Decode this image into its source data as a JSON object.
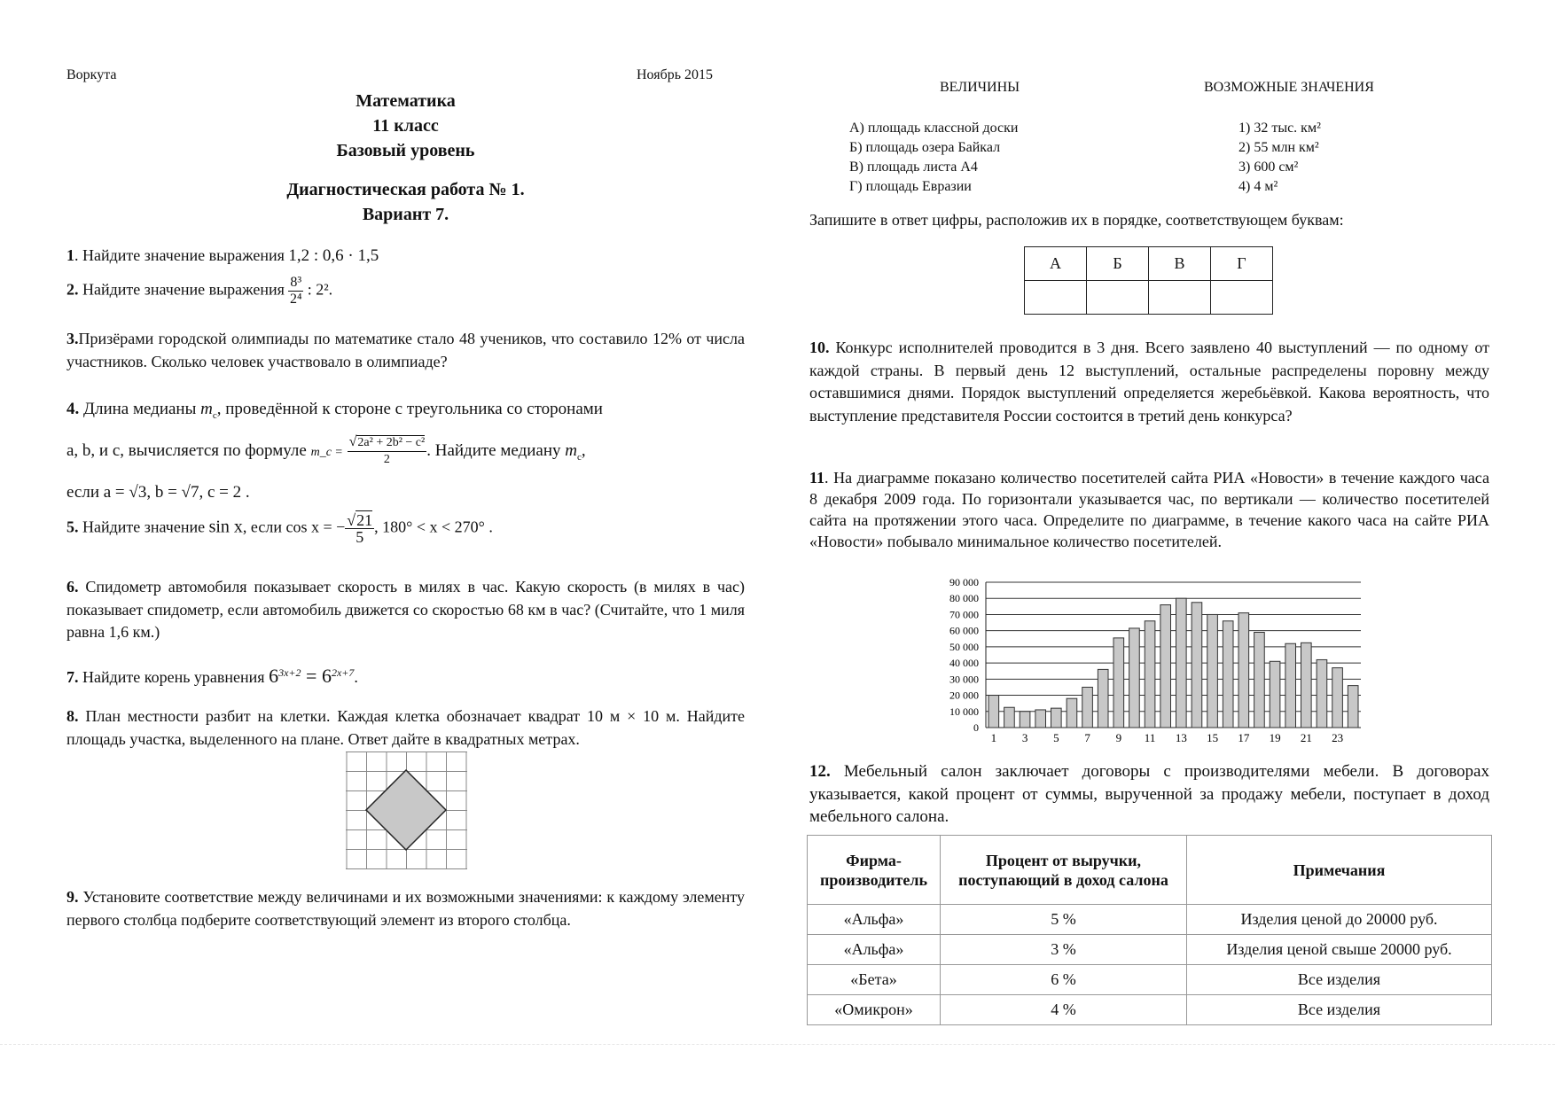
{
  "header": {
    "city": "Воркута",
    "date": "Ноябрь 2015",
    "subject": "Математика",
    "grade": "11 класс",
    "level": "Базовый уровень",
    "work": "Диагностическая работа № 1.",
    "variant": "Вариант 7."
  },
  "q1": {
    "num": "1",
    "text": ". Найдите значение выражения ",
    "expr": "1,2 : 0,6 · 1,5"
  },
  "q2": {
    "num": "2.",
    "text": " Найдите значение выражения ",
    "num_expr": "8³",
    "den_expr": "2⁴",
    "tail": " : 2²."
  },
  "q3": {
    "num": "3.",
    "text": "Призёрами городской олимпиады по математике стало 48 учеников, что составило 12% от числа участников. Сколько человек участвовало в олимпиаде?"
  },
  "q4": {
    "num": "4.",
    "line1a": " Длина медианы ",
    "mc": "m",
    "mc_sub": "c",
    "line1b": ", проведённой к стороне c треугольника со сторонами",
    "line2a": "a, b, и c, вычисляется по формуле ",
    "formula_lhs": "m_c =",
    "formula_num": "2a² + 2b² − c²",
    "formula_den": "2",
    "line2b": ". Найдите медиану ",
    "line3": "если  a = √3, b = √7, c = 2 ."
  },
  "q5": {
    "num": "5.",
    "text": " Найдите значение ",
    "sin": "sin x",
    "if": ", если ",
    "cos": "cos x = −",
    "rad": "21",
    "den": "5",
    "range": ",  180° < x < 270° ."
  },
  "q6": {
    "num": "6.",
    "text": " Спидометр автомобиля показывает скорость в милях в час. Какую скорость (в милях в час) показывает спидометр, если автомобиль движется со скоростью 68 км в час? (Считайте, что 1 миля равна 1,6 км.)"
  },
  "q7": {
    "num": "7.",
    "text": " Найдите корень уравнения ",
    "base": "6",
    "exp1": "3x+2",
    "eq": " = 6",
    "exp2": "2x+7",
    "end": "."
  },
  "q8": {
    "num": "8.",
    "text": " План местности разбит на клетки. Каждая клетка обозначает квадрат 10 м × 10 м. Найдите площадь участка, выделенного на плане. Ответ дайте в квадратных метрах."
  },
  "q9": {
    "num": "9.",
    "text": " Установите соответствие между величинами и их возможными значениями: к каждому элементу первого столбца подберите соответствующий элемент из второго столбца.",
    "col1_title": "ВЕЛИЧИНЫ",
    "col2_title": "ВОЗМОЖНЫЕ ЗНАЧЕНИЯ",
    "quantities": [
      "А) площадь классной доски",
      "Б) площадь озера Байкал",
      "В) площадь листа А4",
      "Г) площадь Евразии"
    ],
    "values": [
      "1) 32 тыс. км²",
      "2) 55 млн км²",
      "3) 600 см²",
      "4) 4 м²"
    ],
    "instruction": "Запишите в ответ цифры, расположив их в порядке, соответствующем буквам:",
    "answer_headers": [
      "А",
      "Б",
      "В",
      "Г"
    ]
  },
  "q10": {
    "num": "10.",
    "text": " Конкурс исполнителей проводится в 3 дня. Всего заявлено 40 выступлений — по одному от каждой страны. В первый день 12 выступлений, остальные распределены поровну между оставшимися днями. Порядок выступлений определяется жеребьёвкой. Какова вероятность, что выступление представителя России состоится в третий день конкурса?"
  },
  "q11": {
    "num": "11",
    "text": ". На диаграмме показано количество посетителей сайта РИА «Новости» в течение каждого часа 8 декабря 2009 года. По горизонтали указывается час, по вертикали — количество посетителей сайта на протяжении этого часа. Определите по диаграмме, в течение какого часа на сайте РИА «Новости» побывало минимальное количество посетителей."
  },
  "chart_data": {
    "type": "bar",
    "x": [
      1,
      2,
      3,
      4,
      5,
      6,
      7,
      8,
      9,
      10,
      11,
      12,
      13,
      14,
      15,
      16,
      17,
      18,
      19,
      20,
      21,
      22,
      23,
      24
    ],
    "values": [
      20000,
      12500,
      10000,
      11000,
      12000,
      18000,
      25000,
      36000,
      55500,
      61500,
      66000,
      76000,
      80000,
      77500,
      70000,
      66000,
      71000,
      59000,
      41000,
      52000,
      52500,
      42000,
      37000,
      26000
    ],
    "x_tick_labels": [
      "1",
      "3",
      "5",
      "7",
      "9",
      "11",
      "13",
      "15",
      "17",
      "19",
      "21",
      "23"
    ],
    "y_tick_labels": [
      "0",
      "10 000",
      "20 000",
      "30 000",
      "40 000",
      "50 000",
      "60 000",
      "70 000",
      "80 000",
      "90 000"
    ],
    "ylim": [
      0,
      90000
    ],
    "grid": true,
    "bar_color": "#c8c8c8"
  },
  "q12": {
    "num": "12.",
    "text": " Мебельный салон заключает договоры с производителями мебели. В договорах указывается, какой процент от суммы, вырученной за продажу мебели, поступает в доход мебельного салона.",
    "headers": [
      "Фирма-производитель",
      "Процент от выручки, поступающий в доход салона",
      "Примечания"
    ],
    "rows": [
      [
        "«Альфа»",
        "5 %",
        "Изделия ценой до 20000 руб."
      ],
      [
        "«Альфа»",
        "3 %",
        "Изделия ценой свыше 20000 руб."
      ],
      [
        "«Бета»",
        "6 %",
        "Все изделия"
      ],
      [
        "«Омикрон»",
        "4 %",
        "Все изделия"
      ]
    ]
  }
}
